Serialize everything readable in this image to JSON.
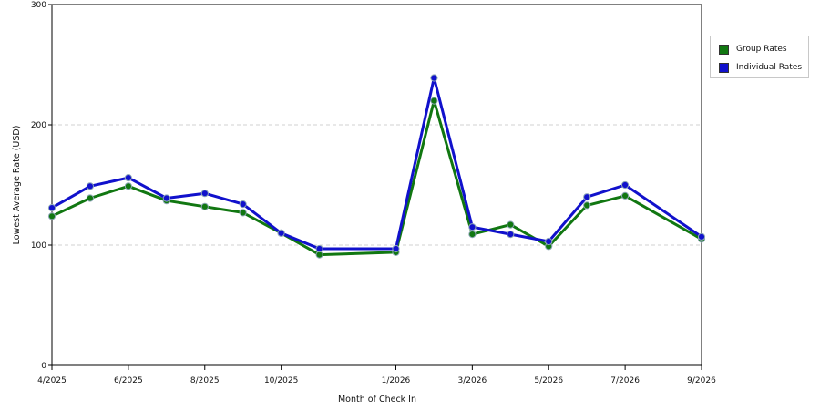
{
  "chart_data": {
    "type": "line",
    "title": "",
    "xlabel": "Month of Check In",
    "ylabel": "Lowest Average Rate (USD)",
    "ylim": [
      0,
      300
    ],
    "yticks": [
      "0",
      "100",
      "200",
      "300"
    ],
    "x_tick_labels": [
      "4/2025",
      "6/2025",
      "8/2025",
      "10/2025",
      "1/2026",
      "3/2026",
      "5/2026",
      "7/2026",
      "9/2026"
    ],
    "grid": "horizontal dashed",
    "legend_position": "right",
    "categories": [
      "4/2025",
      "5/2025",
      "6/2025",
      "7/2025",
      "8/2025",
      "9/2025",
      "10/2025",
      "11/2025",
      "1/2026",
      "2/2026",
      "3/2026",
      "4/2026",
      "5/2026",
      "6/2026",
      "7/2026",
      "9/2026"
    ],
    "series": [
      {
        "name": "Group Rates",
        "color": "#117711",
        "values": [
          124,
          139,
          149,
          137,
          132,
          127,
          110,
          92,
          94,
          220,
          109,
          117,
          99,
          133,
          141,
          105
        ]
      },
      {
        "name": "Individual Rates",
        "color": "#1111cc",
        "values": [
          131,
          149,
          156,
          139,
          143,
          134,
          110,
          97,
          97,
          239,
          115,
          109,
          103,
          140,
          150,
          107
        ]
      }
    ]
  }
}
